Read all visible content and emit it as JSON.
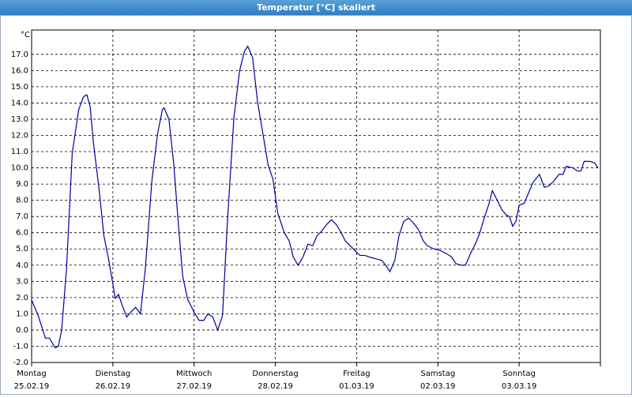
{
  "chart_data": {
    "type": "line",
    "title": "Temperatur [°C] skaliert",
    "y_label": "°C",
    "xlim": [
      0,
      7
    ],
    "ylim": [
      -2,
      18.5
    ],
    "grid": true,
    "xticks": [
      {
        "value": 0,
        "label": "Montag",
        "date": "25.02.19"
      },
      {
        "value": 1,
        "label": "Dienstag",
        "date": "26.02.19"
      },
      {
        "value": 2,
        "label": "Mittwoch",
        "date": "27.02.19"
      },
      {
        "value": 3,
        "label": "Donnerstag",
        "date": "28.02.19"
      },
      {
        "value": 4,
        "label": "Freitag",
        "date": "01.03.19"
      },
      {
        "value": 5,
        "label": "Samstag",
        "date": "02.03.19"
      },
      {
        "value": 6,
        "label": "Sonntag",
        "date": "03.03.19"
      },
      {
        "value": 7,
        "label": null,
        "date": null
      }
    ],
    "yticks": [
      {
        "value": -2,
        "label": "-2.0"
      },
      {
        "value": -1,
        "label": "-1.0"
      },
      {
        "value": 0,
        "label": "0.0"
      },
      {
        "value": 1,
        "label": "1.0"
      },
      {
        "value": 2,
        "label": "2.0"
      },
      {
        "value": 3,
        "label": "3.0"
      },
      {
        "value": 4,
        "label": "4.0"
      },
      {
        "value": 5,
        "label": "5.0"
      },
      {
        "value": 6,
        "label": "6.0"
      },
      {
        "value": 7,
        "label": "7.0"
      },
      {
        "value": 8,
        "label": "8.0"
      },
      {
        "value": 9,
        "label": "9.0"
      },
      {
        "value": 10,
        "label": "10.0"
      },
      {
        "value": 11,
        "label": "11.0"
      },
      {
        "value": 12,
        "label": "12.0"
      },
      {
        "value": 13,
        "label": "13.0"
      },
      {
        "value": 14,
        "label": "14.0"
      },
      {
        "value": 15,
        "label": "15.0"
      },
      {
        "value": 16,
        "label": "16.0"
      },
      {
        "value": 17,
        "label": "17.0"
      }
    ],
    "color": "#0000a0",
    "x": [
      0,
      0.08,
      0.17,
      0.22,
      0.29,
      0.33,
      0.37,
      0.43,
      0.5,
      0.58,
      0.64,
      0.68,
      0.72,
      0.76,
      0.83,
      0.89,
      0.95,
      1.03,
      1.07,
      1.11,
      1.17,
      1.22,
      1.28,
      1.34,
      1.4,
      1.48,
      1.55,
      1.61,
      1.63,
      1.69,
      1.75,
      1.81,
      1.86,
      1.92,
      2,
      2.06,
      2.12,
      2.17,
      2.23,
      2.29,
      2.35,
      2.41,
      2.49,
      2.56,
      2.62,
      2.66,
      2.72,
      2.78,
      2.83,
      2.91,
      2.97,
      3.03,
      3.11,
      3.17,
      3.22,
      3.28,
      3.34,
      3.4,
      3.46,
      3.51,
      3.57,
      3.63,
      3.69,
      3.75,
      3.81,
      3.86,
      3.92,
      3.98,
      4.04,
      4.1,
      4.16,
      4.23,
      4.31,
      4.37,
      4.41,
      4.47,
      4.52,
      4.58,
      4.64,
      4.7,
      4.76,
      4.82,
      4.87,
      4.95,
      5.03,
      5.11,
      5.17,
      5.22,
      5.28,
      5.34,
      5.4,
      5.46,
      5.51,
      5.57,
      5.63,
      5.67,
      5.73,
      5.79,
      5.84,
      5.88,
      5.92,
      5.96,
      6,
      6.06,
      6.12,
      6.17,
      6.25,
      6.31,
      6.37,
      6.43,
      6.49,
      6.54,
      6.58,
      6.66,
      6.72,
      6.76,
      6.8,
      6.87,
      6.93,
      6.97
    ],
    "values": [
      1.85,
      0.9,
      -0.5,
      -0.5,
      -1.1,
      -1.0,
      0.0,
      3.8,
      10.9,
      13.6,
      14.4,
      14.5,
      13.8,
      11.6,
      8.7,
      5.8,
      4.3,
      1.95,
      2.2,
      1.6,
      0.8,
      1.1,
      1.4,
      1.0,
      3.8,
      9.2,
      12.1,
      13.6,
      13.7,
      13.0,
      10.2,
      6.3,
      3.3,
      1.9,
      1.1,
      0.6,
      0.6,
      1.0,
      0.8,
      0.0,
      0.9,
      6.7,
      13.1,
      16.0,
      17.2,
      17.5,
      16.8,
      14.1,
      12.6,
      10.2,
      9.3,
      7.2,
      6.0,
      5.5,
      4.5,
      4.0,
      4.5,
      5.3,
      5.2,
      5.8,
      6.1,
      6.5,
      6.8,
      6.5,
      6.0,
      5.5,
      5.2,
      4.9,
      4.6,
      4.6,
      4.5,
      4.4,
      4.3,
      3.9,
      3.6,
      4.3,
      5.8,
      6.7,
      6.9,
      6.6,
      6.2,
      5.5,
      5.2,
      5.0,
      4.9,
      4.7,
      4.5,
      4.1,
      4.0,
      4.0,
      4.7,
      5.3,
      5.9,
      6.9,
      7.8,
      8.6,
      8.0,
      7.4,
      7.1,
      7.0,
      6.4,
      6.7,
      7.7,
      7.8,
      8.5,
      9.1,
      9.6,
      8.8,
      8.9,
      9.2,
      9.6,
      9.6,
      10.1,
      10.0,
      9.8,
      9.8,
      10.4,
      10.4,
      10.3,
      10.0
    ]
  }
}
